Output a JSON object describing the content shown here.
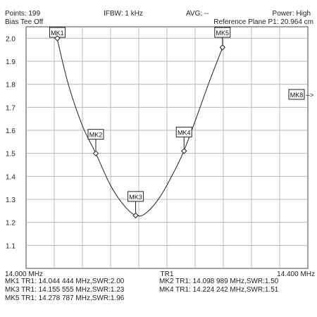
{
  "header": {
    "points": "Points: 199",
    "ifbw": "IFBW: 1 kHz",
    "avg": "AVG: --",
    "power": "Power: High",
    "bias_tee": "Bias Tee Off",
    "reference_plane": "Reference Plane P1: 20.964 cm"
  },
  "chart_data": {
    "type": "line",
    "title": "",
    "xlabel": "TR1",
    "ylabel": "",
    "x_unit": "MHz",
    "xlim": [
      14.0,
      14.4
    ],
    "ylim": [
      1.0,
      2.05
    ],
    "x_ticks": {
      "left": "14.000 MHz",
      "center": "TR1",
      "right": "14.400 MHz"
    },
    "y_ticks": [
      "2.0",
      "1.9",
      "1.8",
      "1.7",
      "1.6",
      "1.5",
      "1.4",
      "1.3",
      "1.2",
      "1.1"
    ],
    "grid": true,
    "grid_color": "#b8b8b8",
    "trace_color": "#222222",
    "series": [
      {
        "x": [
          14.044,
          14.06,
          14.08,
          14.099,
          14.12,
          14.14,
          14.156,
          14.17,
          14.19,
          14.21,
          14.224,
          14.24,
          14.26,
          14.279
        ],
        "y": [
          2.0,
          1.8,
          1.62,
          1.5,
          1.36,
          1.27,
          1.23,
          1.24,
          1.31,
          1.42,
          1.51,
          1.64,
          1.81,
          1.96
        ]
      }
    ],
    "markers": [
      {
        "label": "MK1",
        "x": 14.044444,
        "y": 2.0
      },
      {
        "label": "MK2",
        "x": 14.098989,
        "y": 1.5
      },
      {
        "label": "MK3",
        "x": 14.155555,
        "y": 1.23
      },
      {
        "label": "MK4",
        "x": 14.224242,
        "y": 1.51
      },
      {
        "label": "MK5",
        "x": 14.278787,
        "y": 1.96
      }
    ],
    "offscreen_marker": {
      "label": "MK8",
      "arrow": "-->"
    }
  },
  "readouts": [
    "MK1 TR1:  14.044 444 MHz,SWR:2.00",
    "MK2 TR1:  14.098 989 MHz,SWR:1.50",
    "MK3 TR1:  14.155 555 MHz,SWR:1.23",
    "MK4 TR1:  14.224 242 MHz,SWR:1.51",
    "MK5 TR1:  14.278 787 MHz,SWR:1.96"
  ]
}
